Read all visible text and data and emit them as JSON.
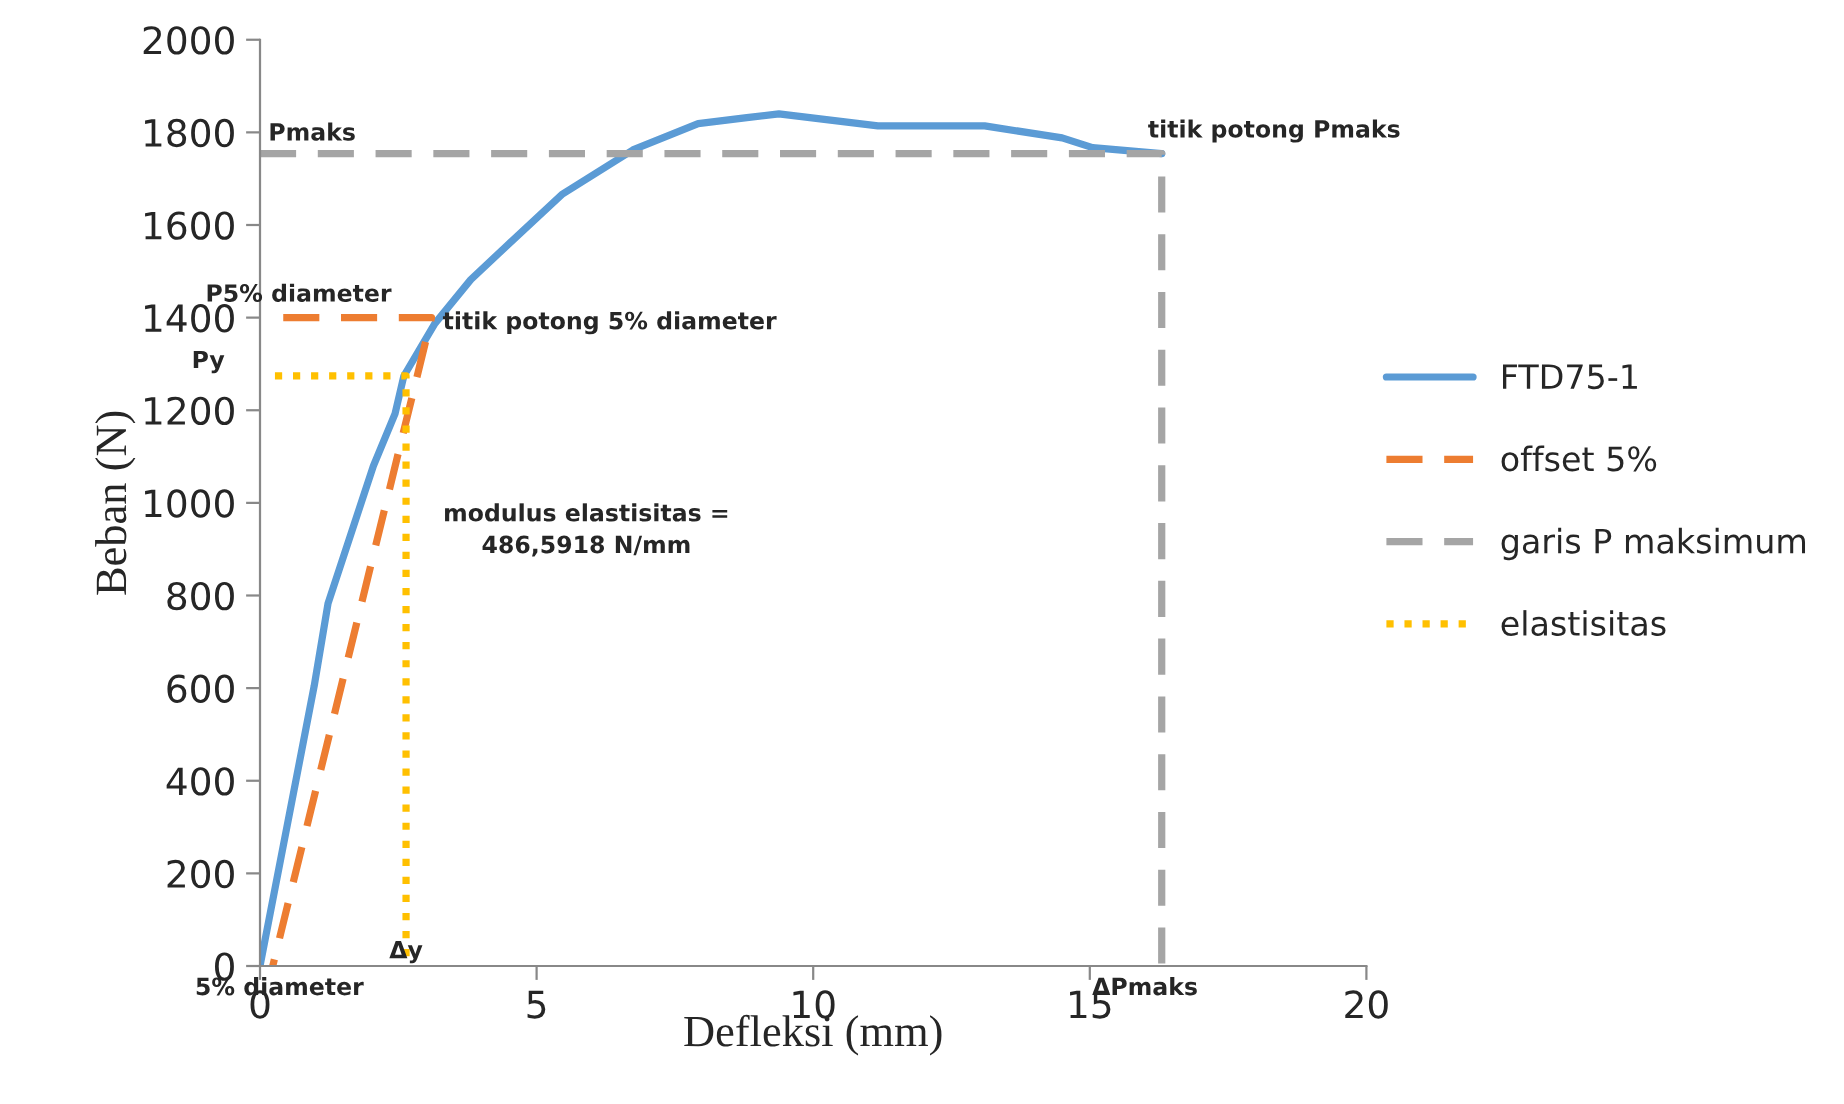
{
  "chart_data": {
    "type": "line",
    "xlabel": "Defleksi (mm)",
    "ylabel": "Beban (N)",
    "xlim": [
      0,
      20
    ],
    "ylim": [
      0,
      2000
    ],
    "xticks": [
      0,
      5,
      10,
      15,
      20
    ],
    "yticks": [
      0,
      200,
      400,
      600,
      800,
      1000,
      1200,
      1400,
      1600,
      1800,
      2000
    ],
    "grid": false,
    "legend": "right",
    "marker": "none",
    "series": [
      {
        "name": "FTD75-1",
        "color": "#5b9bd5",
        "line_style": "solid",
        "x": [
          0,
          0.98,
          1.23,
          2.05,
          2.44,
          2.6,
          3.16,
          3.81,
          4.46,
          5.47,
          6.74,
          7.92,
          8.8,
          9.38,
          11.17,
          13.1,
          14.5,
          15.05,
          16.3
        ],
        "values": [
          0,
          605,
          783,
          1080,
          1192,
          1274,
          1387,
          1482,
          1555,
          1667,
          1762,
          1819,
          1832,
          1840,
          1814,
          1814,
          1788,
          1767,
          1754
        ]
      },
      {
        "name": "offset 5%",
        "color": "#ed7d31",
        "line_style": "dashed",
        "x": [
          0.42,
          3.1,
          0.23
        ],
        "values": [
          1400,
          1400,
          0
        ]
      },
      {
        "name": "garis P maksimum",
        "color": "#a5a5a5",
        "line_style": "dashed",
        "x": [
          0,
          16.3,
          16.3
        ],
        "values": [
          1754,
          1754,
          0
        ]
      },
      {
        "name": "elastisitas",
        "color": "#ffc000",
        "line_style": "dotted",
        "x": [
          0.27,
          2.64,
          2.64
        ],
        "values": [
          1274,
          1274,
          0
        ]
      }
    ],
    "annotations": [
      {
        "text": "Pmaks",
        "x": 0,
        "y": 1754
      },
      {
        "text": "titik potong Pmaks",
        "x": 16.3,
        "y": 1754
      },
      {
        "text": "P5% diameter",
        "x": 0.42,
        "y": 1400
      },
      {
        "text": "titik potong 5% diameter",
        "x": 3.1,
        "y": 1400
      },
      {
        "text": "Py",
        "x": 0.27,
        "y": 1274
      },
      {
        "text": "modulus elastisitas =\n486,5918 N/mm"
      },
      {
        "text": "Δy",
        "x": 2.64,
        "y": 0
      },
      {
        "text": "5% diameter",
        "x": 0.23,
        "y": 0
      },
      {
        "text": "ΔPmaks",
        "x": 16.3,
        "y": 0
      }
    ]
  }
}
